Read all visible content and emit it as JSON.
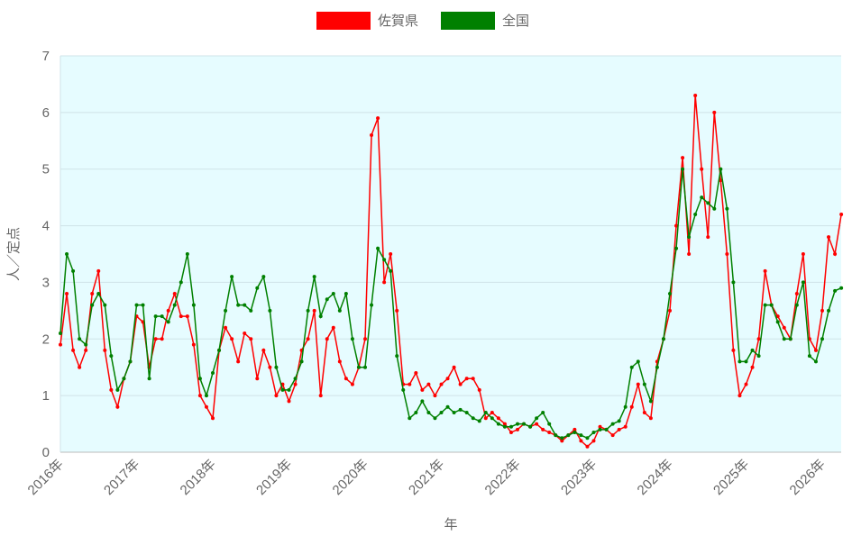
{
  "chart_data": {
    "type": "line",
    "title": "",
    "xlabel": "年",
    "ylabel": "人／定点",
    "ylim": [
      0,
      7
    ],
    "yticks": [
      "0",
      "1",
      "2",
      "3",
      "4",
      "5",
      "6",
      "7"
    ],
    "xticks": [
      "2016年",
      "2017年",
      "2018年",
      "2019年",
      "2020年",
      "2021年",
      "2022年",
      "2023年",
      "2024年",
      "2025年",
      "2026年"
    ],
    "xlim_years": [
      2016,
      2026.25
    ],
    "x_start_year": 2016,
    "points_per_year": 12,
    "grid": true,
    "legend_position": "top",
    "series": [
      {
        "name": "佐賀県",
        "color": "#ff0000",
        "values": [
          1.9,
          2.8,
          1.8,
          1.5,
          1.8,
          2.8,
          3.2,
          1.8,
          1.1,
          0.8,
          1.3,
          1.6,
          2.4,
          2.3,
          1.5,
          2.0,
          2.0,
          2.5,
          2.8,
          2.4,
          2.4,
          1.9,
          1.0,
          0.8,
          0.6,
          1.8,
          2.2,
          2.0,
          1.6,
          2.1,
          2.0,
          1.3,
          1.8,
          1.5,
          1.0,
          1.2,
          0.9,
          1.2,
          1.8,
          2.0,
          2.5,
          1.0,
          2.0,
          2.2,
          1.6,
          1.3,
          1.2,
          1.5,
          2.0,
          5.6,
          5.9,
          3.0,
          3.5,
          2.5,
          1.2,
          1.2,
          1.4,
          1.1,
          1.2,
          1.0,
          1.2,
          1.3,
          1.5,
          1.2,
          1.3,
          1.3,
          1.1,
          0.6,
          0.7,
          0.6,
          0.5,
          0.35,
          0.4,
          0.5,
          0.45,
          0.5,
          0.4,
          0.35,
          0.3,
          0.2,
          0.3,
          0.4,
          0.2,
          0.1,
          0.2,
          0.45,
          0.4,
          0.3,
          0.4,
          0.45,
          0.8,
          1.2,
          0.7,
          0.6,
          1.6,
          2.0,
          2.5,
          4.0,
          5.2,
          3.5,
          6.3,
          5.0,
          3.8,
          6.0,
          4.8,
          3.5,
          1.8,
          1.0,
          1.2,
          1.5,
          2.0,
          3.2,
          2.6,
          2.4,
          2.2,
          2.0,
          2.8,
          3.5,
          2.0,
          1.8,
          2.5,
          3.8,
          3.5,
          4.2
        ]
      },
      {
        "name": "全国",
        "color": "#008000",
        "values": [
          2.1,
          3.5,
          3.2,
          2.0,
          1.9,
          2.6,
          2.8,
          2.6,
          1.7,
          1.1,
          1.3,
          1.6,
          2.6,
          2.6,
          1.3,
          2.4,
          2.4,
          2.3,
          2.6,
          3.0,
          3.5,
          2.6,
          1.3,
          1.0,
          1.4,
          1.8,
          2.5,
          3.1,
          2.6,
          2.6,
          2.5,
          2.9,
          3.1,
          2.5,
          1.5,
          1.1,
          1.1,
          1.3,
          1.6,
          2.5,
          3.1,
          2.4,
          2.7,
          2.8,
          2.5,
          2.8,
          2.0,
          1.5,
          1.5,
          2.6,
          3.6,
          3.4,
          3.2,
          1.7,
          1.1,
          0.6,
          0.7,
          0.9,
          0.7,
          0.6,
          0.7,
          0.8,
          0.7,
          0.75,
          0.7,
          0.6,
          0.55,
          0.7,
          0.6,
          0.5,
          0.45,
          0.45,
          0.5,
          0.5,
          0.45,
          0.6,
          0.7,
          0.5,
          0.3,
          0.25,
          0.3,
          0.35,
          0.3,
          0.25,
          0.35,
          0.4,
          0.4,
          0.5,
          0.55,
          0.8,
          1.5,
          1.6,
          1.2,
          0.9,
          1.5,
          2.0,
          2.8,
          3.6,
          5.0,
          3.8,
          4.2,
          4.5,
          4.4,
          4.3,
          5.0,
          4.3,
          3.0,
          1.6,
          1.6,
          1.8,
          1.7,
          2.6,
          2.6,
          2.3,
          2.0,
          2.0,
          2.6,
          3.0,
          1.7,
          1.6,
          2.0,
          2.5,
          2.85,
          2.9
        ]
      }
    ]
  }
}
